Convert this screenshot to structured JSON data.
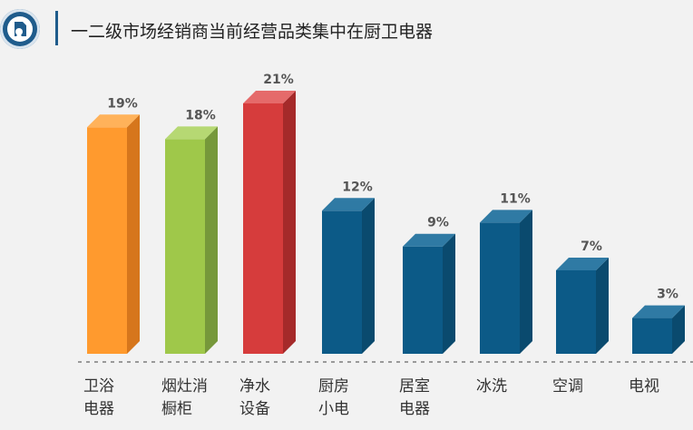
{
  "header": {
    "title": "一二级市场经销商当前经营品类集中在厨卫电器",
    "logo_icon": "shield-document-icon"
  },
  "chart_data": {
    "type": "bar",
    "title": "一二级市场经销商当前经营品类集中在厨卫电器",
    "categories": [
      [
        "卫浴",
        "电器"
      ],
      [
        "烟灶消",
        "橱柜"
      ],
      [
        "净水",
        "设备"
      ],
      [
        "厨房",
        "小电"
      ],
      [
        "居室",
        "电器"
      ],
      [
        "冰洗"
      ],
      [
        "空调"
      ],
      [
        "电视"
      ]
    ],
    "values": [
      19,
      18,
      21,
      12,
      9,
      11,
      7,
      3
    ],
    "value_labels": [
      "19%",
      "18%",
      "21%",
      "12%",
      "9%",
      "11%",
      "7%",
      "3%"
    ],
    "unit": "%",
    "ylim": [
      0,
      21
    ],
    "grid": false,
    "colors": {
      "orange": [
        "#ff9a2e",
        "#d6761c",
        "#ffb25a"
      ],
      "green": [
        "#9fc84a",
        "#76983a",
        "#b6d873"
      ],
      "red": [
        "#d63c3c",
        "#a52a2a",
        "#e56a6a"
      ],
      "blue": [
        "#0c5a87",
        "#0a4a6e",
        "#2f7aa4"
      ]
    },
    "bar_colors": [
      "orange",
      "green",
      "red",
      "blue",
      "blue",
      "blue",
      "blue",
      "blue"
    ]
  }
}
